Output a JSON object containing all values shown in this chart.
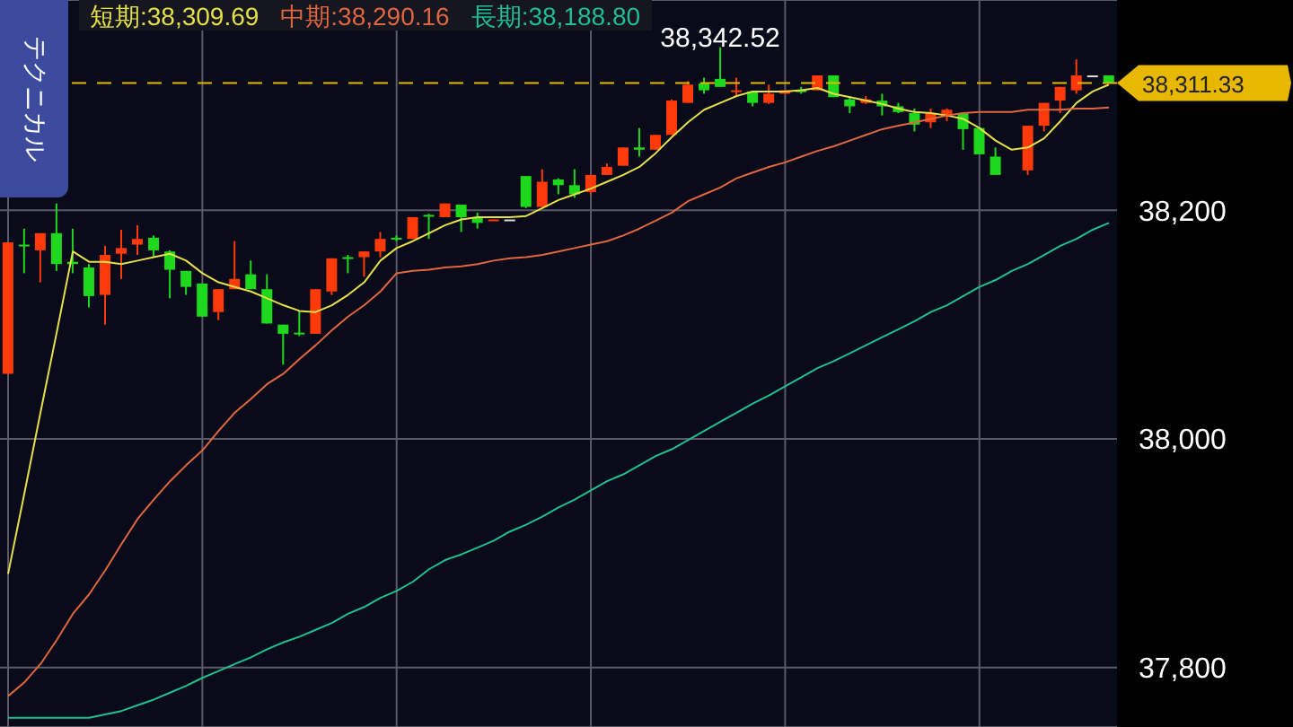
{
  "chart_data": {
    "type": "candlestick",
    "categories": [
      null,
      null,
      null,
      null,
      null,
      null,
      null,
      null,
      null,
      null,
      null,
      null,
      null,
      null,
      null,
      null,
      null,
      null,
      null,
      null,
      null,
      null,
      null,
      null,
      null,
      null,
      null,
      null,
      null,
      null,
      null,
      null,
      null,
      null,
      null,
      null,
      null,
      null,
      null,
      null,
      null,
      null,
      null,
      null,
      null,
      null,
      null,
      null,
      null,
      null,
      null,
      null,
      null,
      null,
      null,
      null,
      null,
      null,
      null,
      null,
      null,
      null,
      null,
      null,
      null,
      null,
      null,
      null,
      null
    ],
    "ohlc": [
      [
        38057,
        38172,
        38057,
        38172
      ],
      [
        38170,
        38184,
        38145,
        38169
      ],
      [
        38165,
        38180,
        38137,
        38180
      ],
      [
        38180,
        38206,
        38147,
        38153
      ],
      [
        38155,
        38184,
        38145,
        38153
      ],
      [
        38150,
        38153,
        38115,
        38125
      ],
      [
        38126,
        38169,
        38100,
        38161
      ],
      [
        38162,
        38183,
        38140,
        38167
      ],
      [
        38170,
        38187,
        38161,
        38175
      ],
      [
        38176,
        38178,
        38159,
        38165
      ],
      [
        38164,
        38165,
        38123,
        38148
      ],
      [
        38147,
        38147,
        38126,
        38133
      ],
      [
        38136,
        38136,
        38107,
        38107
      ],
      [
        38111,
        38131,
        38104,
        38131
      ],
      [
        38131,
        38173,
        38131,
        38140
      ],
      [
        38144,
        38156,
        38131,
        38131
      ],
      [
        38131,
        38144,
        38101,
        38101
      ],
      [
        38100,
        38100,
        38065,
        38092
      ],
      [
        38093,
        38112,
        38090,
        38092
      ],
      [
        38092,
        38131,
        38092,
        38131
      ],
      [
        38129,
        38158,
        38126,
        38158
      ],
      [
        38159,
        38161,
        38145,
        38158
      ],
      [
        38159,
        38164,
        38142,
        38164
      ],
      [
        38164,
        38181,
        38159,
        38175
      ],
      [
        38176,
        38178,
        38173,
        38175
      ],
      [
        38175,
        38194,
        38175,
        38194
      ],
      [
        38196,
        38197,
        38175,
        38195
      ],
      [
        38194,
        38206,
        38194,
        38206
      ],
      [
        38205,
        38205,
        38181,
        38194
      ],
      [
        38194,
        38198,
        38184,
        38189
      ],
      [
        38191,
        38192,
        38191,
        38192
      ],
      [
        38192,
        38192,
        38192,
        38192
      ],
      [
        38230,
        38230,
        38202,
        38203
      ],
      [
        38203,
        38236,
        38203,
        38225
      ],
      [
        38227,
        38228,
        38214,
        38222
      ],
      [
        38222,
        38236,
        38211,
        38214
      ],
      [
        38216,
        38231,
        38214,
        38231
      ],
      [
        38231,
        38241,
        38231,
        38238
      ],
      [
        38239,
        38255,
        38239,
        38255
      ],
      [
        38255,
        38272,
        38247,
        38253
      ],
      [
        38253,
        38266,
        38253,
        38266
      ],
      [
        38266,
        38297,
        38266,
        38296
      ],
      [
        38294,
        38313,
        38294,
        38310
      ],
      [
        38311,
        38316,
        38302,
        38305
      ],
      [
        38315,
        38342.52,
        38308,
        38308
      ],
      [
        38304,
        38316,
        38300,
        38305
      ],
      [
        38304,
        38304,
        38291,
        38294
      ],
      [
        38294,
        38310,
        38293,
        38302
      ],
      [
        38302,
        38305,
        38302,
        38305
      ],
      [
        38305,
        38308,
        38302,
        38304
      ],
      [
        38305,
        38318,
        38305,
        38318
      ],
      [
        38318,
        38318,
        38299,
        38299
      ],
      [
        38297,
        38300,
        38285,
        38291
      ],
      [
        38294,
        38300,
        38293,
        38297
      ],
      [
        38296,
        38302,
        38283,
        38291
      ],
      [
        38291,
        38294,
        38285,
        38286
      ],
      [
        38285,
        38289,
        38269,
        38275
      ],
      [
        38277,
        38289,
        38272,
        38285
      ],
      [
        38283,
        38289,
        38278,
        38288
      ],
      [
        38285,
        38285,
        38253,
        38271
      ],
      [
        38272,
        38272,
        38249,
        38249
      ],
      [
        38247,
        38255,
        38231,
        38231
      ],
      null,
      [
        38235,
        38274,
        38231,
        38274
      ],
      [
        38274,
        38294,
        38269,
        38294
      ],
      [
        38296,
        38308,
        38285,
        38308
      ],
      [
        38305,
        38332,
        38302,
        38318
      ],
      [
        38318,
        38318,
        38318,
        38318
      ],
      [
        38318,
        38318,
        38311,
        38311.33
      ]
    ],
    "colors": [
      "#ff3a0a",
      "#1ed81e",
      "#ff3a0a",
      "#1ed81e",
      "#1ed81e",
      "#1ed81e",
      "#ff3a0a",
      "#ff3a0a",
      "#ff3a0a",
      "#1ed81e",
      "#1ed81e",
      "#1ed81e",
      "#1ed81e",
      "#ff3a0a",
      "#ff3a0a",
      "#1ed81e",
      "#1ed81e",
      "#1ed81e",
      "#1ed81e",
      "#ff3a0a",
      "#ff3a0a",
      "#1ed81e",
      "#ff3a0a",
      "#ff3a0a",
      "#1ed81e",
      "#ff3a0a",
      "#1ed81e",
      "#ff3a0a",
      "#1ed81e",
      "#1ed81e",
      "#ff3a0a",
      "#dddddd",
      "#1ed81e",
      "#ff3a0a",
      "#1ed81e",
      "#1ed81e",
      "#ff3a0a",
      "#ff3a0a",
      "#ff3a0a",
      "#1ed81e",
      "#ff3a0a",
      "#ff3a0a",
      "#ff3a0a",
      "#1ed81e",
      "#1ed81e",
      "#ff3a0a",
      "#1ed81e",
      "#ff3a0a",
      "#ff3a0a",
      "#1ed81e",
      "#ff3a0a",
      "#1ed81e",
      "#1ed81e",
      "#ff3a0a",
      "#1ed81e",
      "#1ed81e",
      "#1ed81e",
      "#ff3a0a",
      "#ff3a0a",
      "#1ed81e",
      "#1ed81e",
      "#1ed81e",
      null,
      "#ff3a0a",
      "#ff3a0a",
      "#ff3a0a",
      "#ff3a0a",
      "#dddddd",
      "#1ed81e"
    ],
    "series": [
      {
        "type": "line",
        "name": "短期:38,309.69",
        "color": "#e5e04a",
        "values": [
          37882,
          37952,
          38023,
          38093,
          38164,
          38155,
          38155,
          38153,
          38156,
          38159,
          38162,
          38156,
          38145,
          38137,
          38133,
          38129,
          38123,
          38117,
          38112,
          38111,
          38117,
          38126,
          38137,
          38156,
          38167,
          38173,
          38180,
          38187,
          38192,
          38194,
          38194,
          38194,
          38195,
          38202,
          38209,
          38214,
          38219,
          38225,
          38231,
          38238,
          38250,
          38264,
          38277,
          38288,
          38294,
          38300,
          38304,
          38304,
          38304,
          38305,
          38307,
          38302,
          38299,
          38296,
          38293,
          38289,
          38286,
          38285,
          38283,
          38280,
          38272,
          38261,
          38253,
          38255,
          38263,
          38278,
          38294,
          38304,
          38310
        ]
      },
      {
        "type": "line",
        "name": "中期:38,290.16",
        "color": "#e0663f",
        "values": [
          37775,
          37787,
          37803,
          37824,
          37847,
          37864,
          37885,
          37908,
          37930,
          37947,
          37963,
          37977,
          37990,
          38007,
          38023,
          38035,
          38048,
          38057,
          38070,
          38082,
          38095,
          38107,
          38117,
          38129,
          38145,
          38147,
          38148,
          38150,
          38151,
          38153,
          38156,
          38158,
          38159,
          38161,
          38164,
          38167,
          38170,
          38173,
          38178,
          38184,
          38191,
          38198,
          38208,
          38214,
          38220,
          38228,
          38233,
          38238,
          38242,
          38247,
          38252,
          38256,
          38261,
          38266,
          38271,
          38274,
          38277,
          38280,
          38283,
          38285,
          38286,
          38286,
          38286,
          38288,
          38288,
          38288,
          38289,
          38289,
          38290
        ]
      },
      {
        "type": "line",
        "name": "長期:38,188.80",
        "color": "#1fbf8f",
        "values": [
          37756,
          37756,
          37756,
          37756,
          37756,
          37756,
          37759,
          37762,
          37767,
          37772,
          37778,
          37784,
          37791,
          37797,
          37803,
          37809,
          37816,
          37822,
          37827,
          37833,
          37839,
          37847,
          37853,
          37861,
          37867,
          37875,
          37886,
          37894,
          37899,
          37905,
          37911,
          37919,
          37925,
          37932,
          37940,
          37947,
          37955,
          37963,
          37969,
          37977,
          37985,
          37991,
          37999,
          38007,
          38015,
          38023,
          38031,
          38038,
          38046,
          38054,
          38062,
          38068,
          38075,
          38082,
          38089,
          38096,
          38103,
          38111,
          38117,
          38125,
          38133,
          38139,
          38147,
          38153,
          38161,
          38169,
          38175,
          38183,
          38189
        ]
      }
    ],
    "ylim": [
      37748,
      38384
    ],
    "yticks": [
      {
        "value": 37800,
        "label": "37,800"
      },
      {
        "value": 38000,
        "label": "38,000"
      },
      {
        "value": 38200,
        "label": "38,200"
      }
    ],
    "ref_lines": [
      {
        "axis": "y",
        "value": 38311.33,
        "label": "38,311.33",
        "color": "#e8b800",
        "line_style": "dashed"
      }
    ],
    "annotations": [
      "テクニカル",
      {
        "text": "38,342.52",
        "y": 38342.52
      }
    ],
    "grid": true,
    "legend": "top",
    "tick_labels": "y"
  }
}
